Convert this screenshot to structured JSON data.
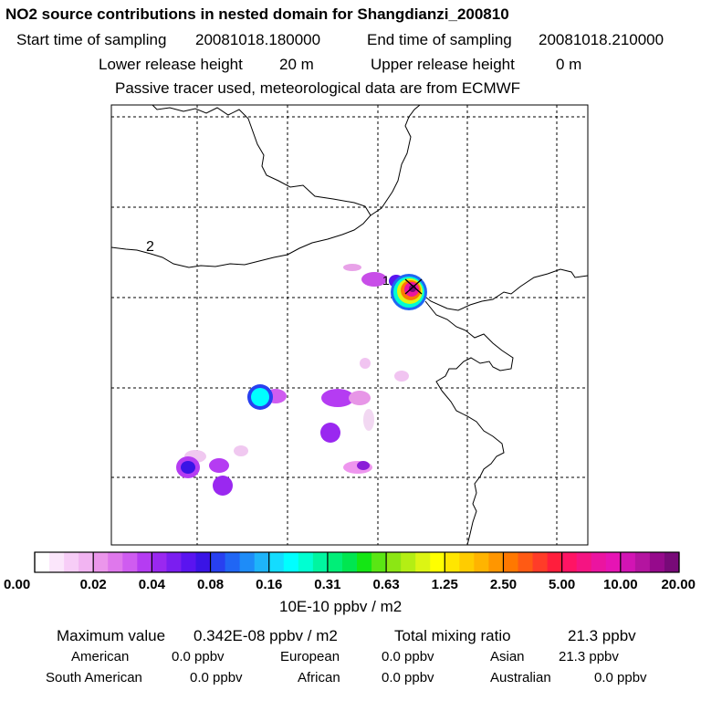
{
  "header": {
    "title": "NO2 source contributions in nested domain for Shangdianzi_200810",
    "start_label": "Start time of sampling",
    "start_value": "20081018.180000",
    "end_label": "End time of sampling",
    "end_value": "20081018.210000",
    "lower_label": "Lower release height",
    "lower_value": "20 m",
    "upper_label": "Upper release height",
    "upper_value": "0 m",
    "tracer_note": "Passive tracer used, meteorological data are from ECMWF"
  },
  "map": {
    "station_label": "1",
    "contour_label": "2"
  },
  "chart_data": {
    "type": "heatmap",
    "title": "NO2 source contributions in nested domain for Shangdianzi_200810",
    "colorbar": {
      "ticks": [
        "0.00",
        "0.02",
        "0.04",
        "0.08",
        "0.16",
        "0.31",
        "0.63",
        "1.25",
        "2.50",
        "5.00",
        "10.00",
        "20.00"
      ],
      "unit": "10E-10 ppbv / m2",
      "colors": [
        "#ffffff",
        "#fbe6fb",
        "#f7cdf7",
        "#f2b4f2",
        "#eb96eb",
        "#df78ec",
        "#cf5cf0",
        "#b53cf2",
        "#9a28f0",
        "#7b1ef0",
        "#5a14f0",
        "#3a14e6",
        "#2840f0",
        "#2066f4",
        "#1e8cf8",
        "#1eb4fa",
        "#14dcff",
        "#00ffff",
        "#00ffd2",
        "#00f5a0",
        "#00ee78",
        "#00e650",
        "#14e614",
        "#5ae614",
        "#8ce614",
        "#b4ee14",
        "#dcf514",
        "#ffff00",
        "#ffe600",
        "#ffcc00",
        "#ffb400",
        "#ff9600",
        "#ff7800",
        "#ff5a14",
        "#ff3c28",
        "#ff1e3c",
        "#ff1464",
        "#f51482",
        "#eb14a0",
        "#e614b4",
        "#d214b4",
        "#b414a0",
        "#960a8c",
        "#780a78"
      ]
    },
    "max_value": "0.342E-08 ppbv / m2",
    "total_mixing_ratio": "21.3 ppbv",
    "sources": [
      {
        "name": "American",
        "value": "0.0 ppbv"
      },
      {
        "name": "European",
        "value": "0.0 ppbv"
      },
      {
        "name": "Asian",
        "value": "21.3 ppbv"
      },
      {
        "name": "South American",
        "value": "0.0 ppbv"
      },
      {
        "name": "African",
        "value": "0.0 ppbv"
      },
      {
        "name": "Australian",
        "value": "0.0 ppbv"
      }
    ]
  },
  "footer": {
    "max_label": "Maximum value",
    "total_label": "Total mixing ratio"
  }
}
